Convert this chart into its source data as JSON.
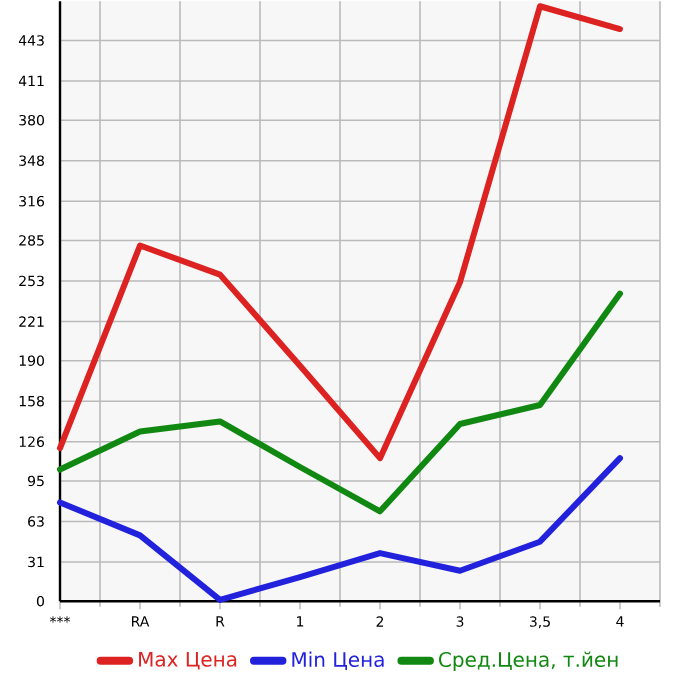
{
  "chart_data": {
    "type": "line",
    "categories": [
      "***",
      "RA",
      "R",
      "1",
      "2",
      "3",
      "3,5",
      "4"
    ],
    "series": [
      {
        "name": "Max Цена",
        "color": "#dd2222",
        "values": [
          121,
          281,
          258,
          186,
          113,
          252,
          470,
          452
        ]
      },
      {
        "name": "Min Цена",
        "color": "#2222dd",
        "values": [
          78,
          52,
          1,
          19,
          38,
          24,
          47,
          113
        ]
      },
      {
        "name": "Сред.Цена, т.йен",
        "color": "#118811",
        "values": [
          104,
          134,
          142,
          106,
          71,
          140,
          155,
          243
        ]
      }
    ],
    "ylim": [
      0,
      474
    ],
    "yticks": [
      0,
      31,
      63,
      95,
      126,
      158,
      190,
      221,
      253,
      285,
      316,
      348,
      380,
      411,
      443
    ],
    "grid": true,
    "legend": "bottom",
    "marker": "none",
    "line_style": "solid"
  }
}
